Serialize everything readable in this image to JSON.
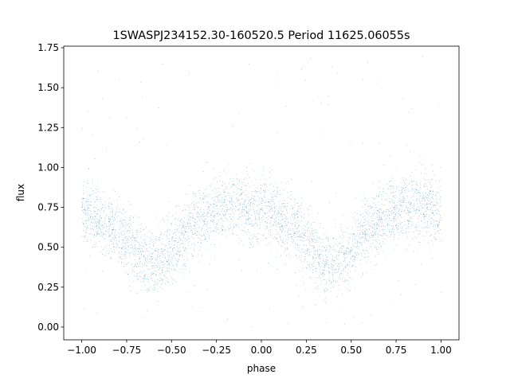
{
  "chart_data": {
    "type": "scatter",
    "title": "1SWASPJ234152.30-160520.5 Period 11625.06055s",
    "xlabel": "phase",
    "ylabel": "flux",
    "xlim": [
      -1.1,
      1.1
    ],
    "ylim": [
      -0.08,
      1.76
    ],
    "xticks": [
      -1.0,
      -0.75,
      -0.5,
      -0.25,
      0.0,
      0.25,
      0.5,
      0.75,
      1.0
    ],
    "xtick_labels": [
      "−1.00",
      "−0.75",
      "−0.50",
      "−0.25",
      "0.00",
      "0.25",
      "0.50",
      "0.75",
      "1.00"
    ],
    "yticks": [
      0.0,
      0.25,
      0.5,
      0.75,
      1.0,
      1.25,
      1.5,
      1.75
    ],
    "ytick_labels": [
      "0.00",
      "0.25",
      "0.50",
      "0.75",
      "1.00",
      "1.25",
      "1.50",
      "1.75"
    ],
    "grid": false,
    "marker_color": "#1f77b4",
    "phase_range": [
      -1.0,
      1.0
    ],
    "period_phase": 1.0,
    "phase_curve": {
      "phase": [
        0.0,
        0.05,
        0.1,
        0.15,
        0.2,
        0.25,
        0.3,
        0.35,
        0.4,
        0.45,
        0.5,
        0.55,
        0.6,
        0.65,
        0.7,
        0.75,
        0.8,
        0.85,
        0.9,
        0.95,
        1.0
      ],
      "flux": [
        0.72,
        0.7,
        0.67,
        0.64,
        0.6,
        0.55,
        0.48,
        0.42,
        0.4,
        0.42,
        0.47,
        0.55,
        0.62,
        0.67,
        0.7,
        0.73,
        0.75,
        0.76,
        0.76,
        0.74,
        0.72
      ]
    },
    "scatter_sigma": 0.1,
    "outlier_flux_range": [
      0.0,
      1.7
    ],
    "point_count": 26000
  }
}
